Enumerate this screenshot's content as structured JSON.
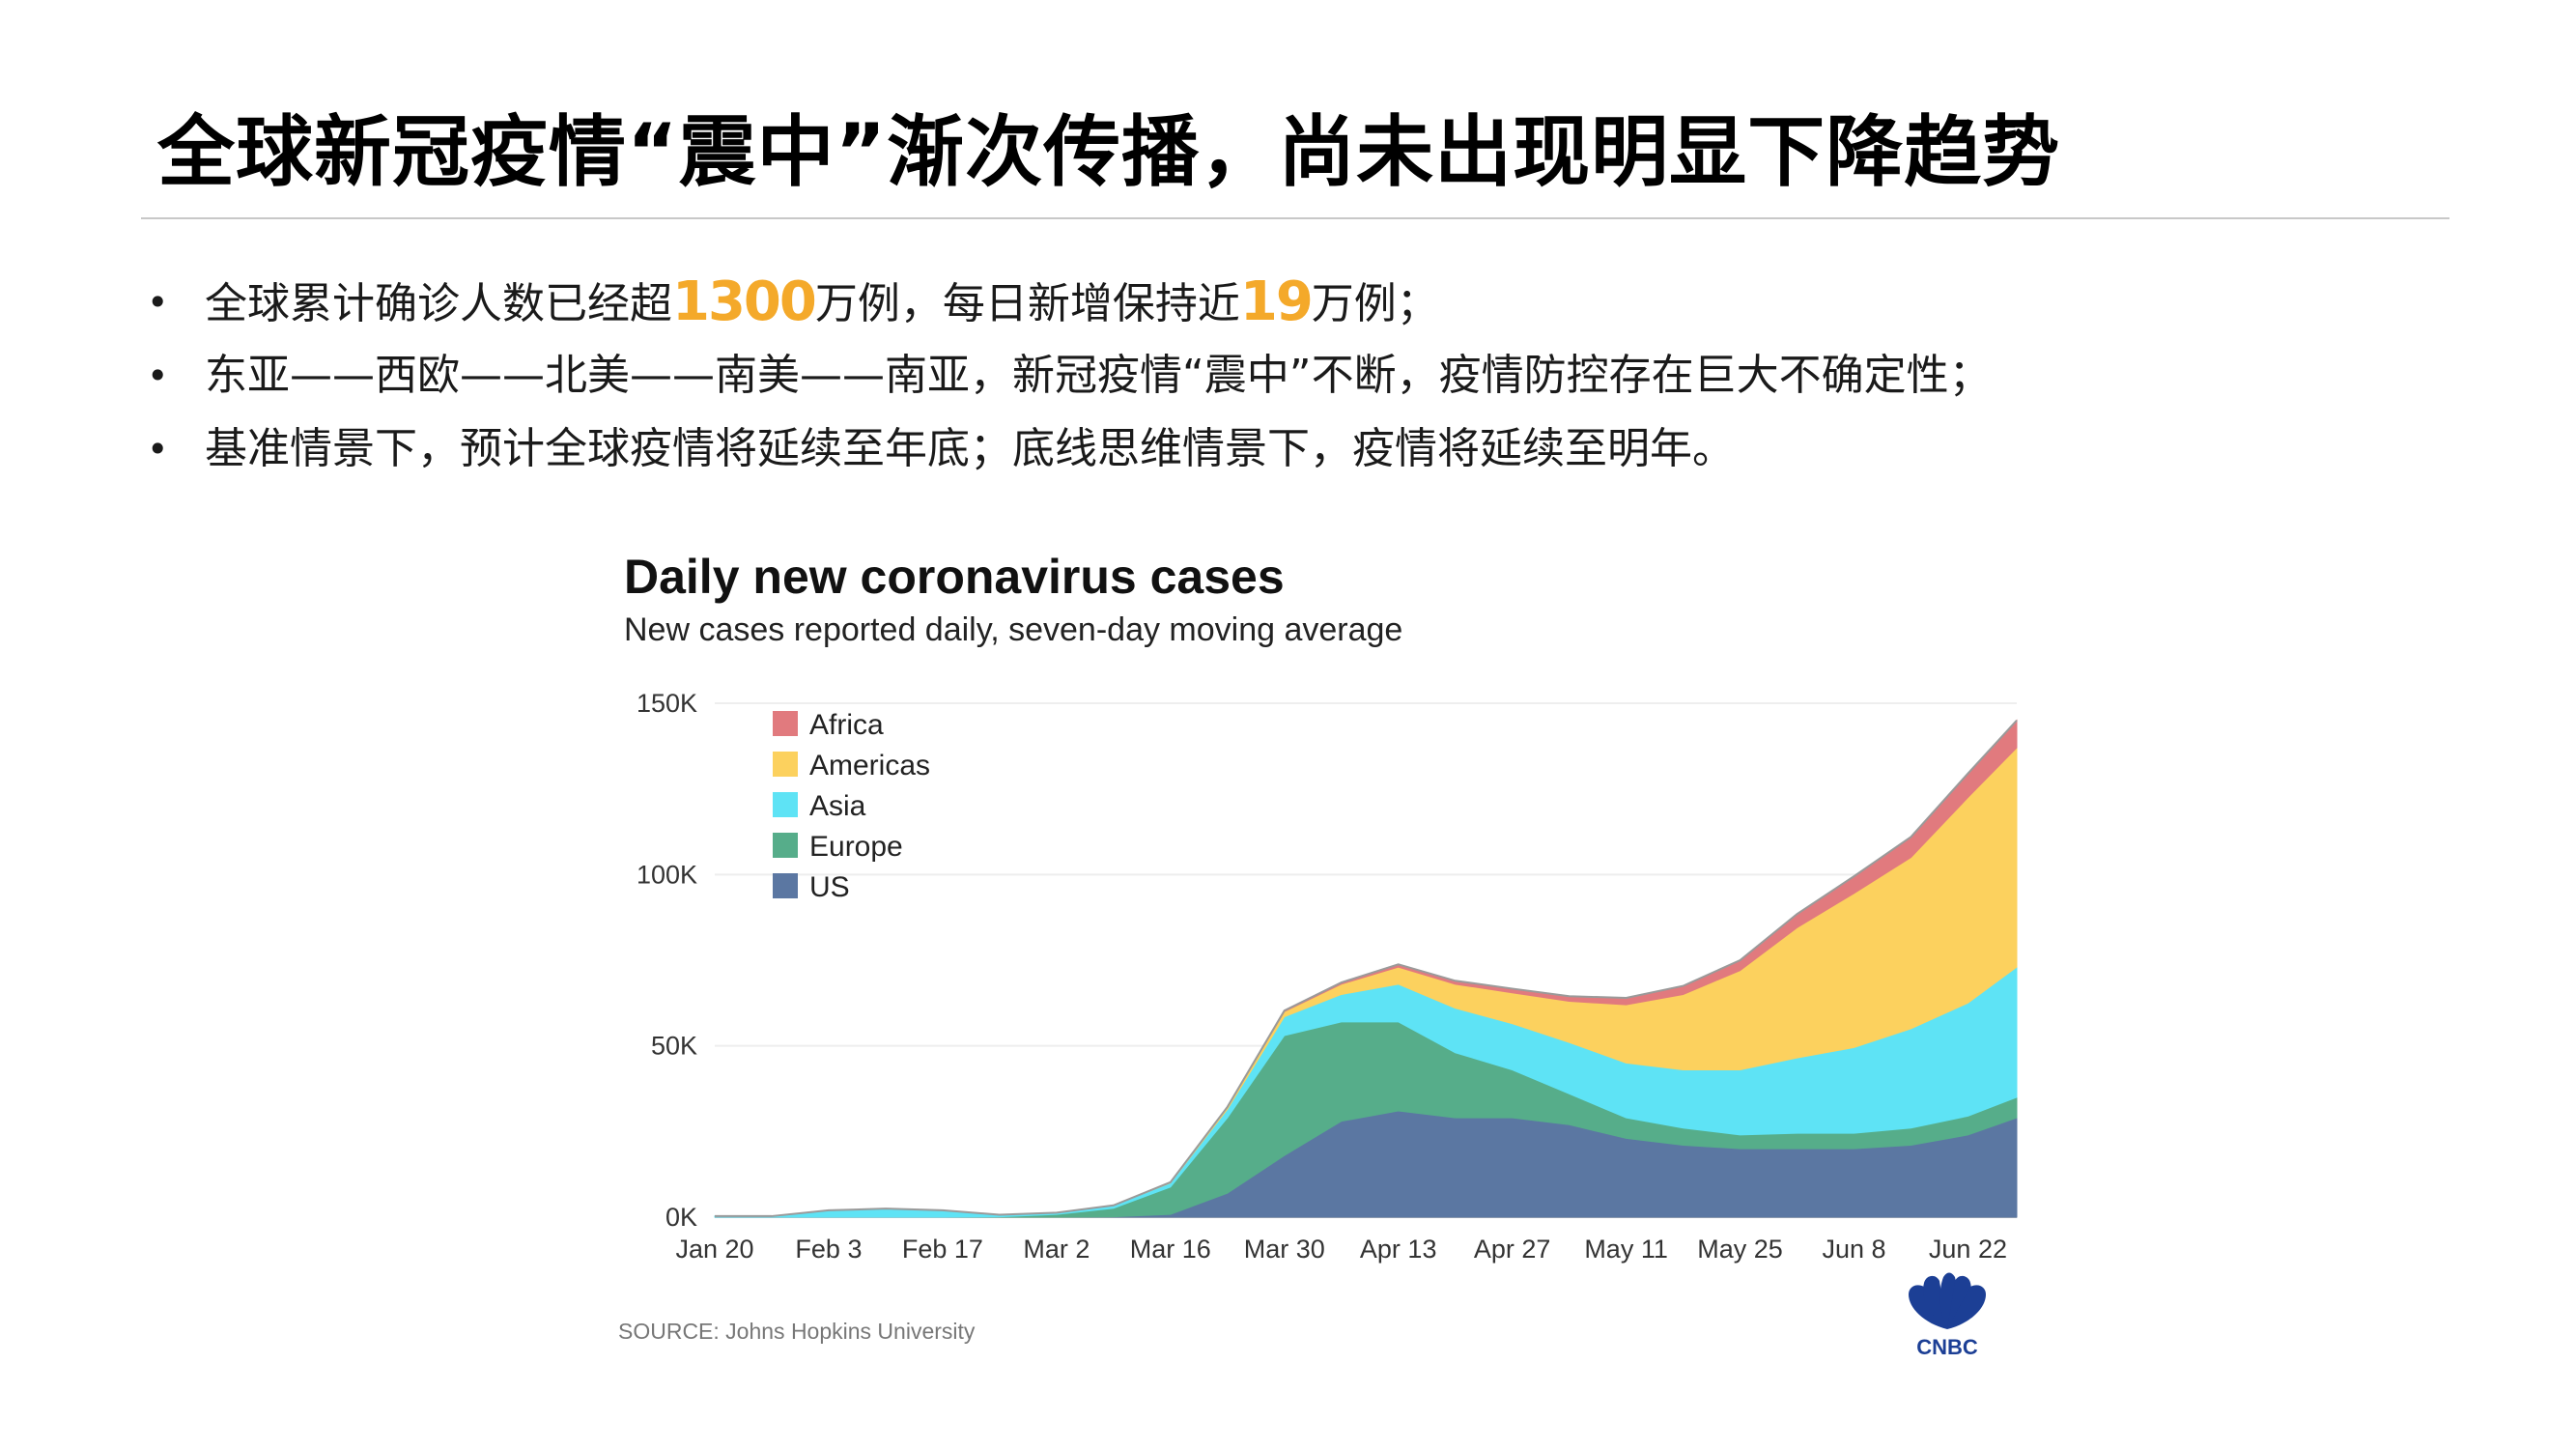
{
  "slide": {
    "title": "全球新冠疫情“震中”渐次传播，尚未出现明显下降趋势",
    "bullet_symbol": "•",
    "bullets": [
      {
        "parts": [
          {
            "text": "全球累计确诊人数已经超"
          },
          {
            "text": "1300",
            "highlight": true
          },
          {
            "text": "万例，每日新增保持近"
          },
          {
            "text": "19",
            "highlight": true
          },
          {
            "text": "万例；"
          }
        ]
      },
      {
        "parts": [
          {
            "text": "东亚——西欧——北美——南美——南亚，新冠疫情“震中”不断，疫情防控存在巨大不确定性；"
          }
        ]
      },
      {
        "parts": [
          {
            "text": "基准情景下，预计全球疫情将延续至年底；底线思维情景下，疫情将延续至明年。"
          }
        ]
      }
    ],
    "highlight_color": "#F4A92A"
  },
  "chart_data": {
    "type": "area",
    "stacked": true,
    "title": "Daily new coronavirus cases",
    "subtitle": "New cases reported daily, seven-day moving average",
    "source": "SOURCE: Johns Hopkins University",
    "logo_text": "CNBC",
    "x_tick_labels": [
      "Jan 20",
      "Feb 3",
      "Feb 17",
      "Mar 2",
      "Mar 16",
      "Mar 30",
      "Apr 13",
      "Apr 27",
      "May 11",
      "May 25",
      "Jun 8",
      "Jun 22"
    ],
    "x_tick_days": [
      0,
      14,
      28,
      42,
      56,
      70,
      84,
      98,
      112,
      126,
      140,
      154
    ],
    "x_range": [
      0,
      160
    ],
    "y_range": [
      0,
      150000
    ],
    "y_ticks": [
      0,
      50000,
      100000,
      150000
    ],
    "y_tick_labels": [
      "0K",
      "50K",
      "100K",
      "150K"
    ],
    "legend_position": "top-left",
    "x_days": [
      0,
      7,
      14,
      21,
      28,
      35,
      42,
      49,
      56,
      63,
      70,
      77,
      84,
      91,
      98,
      105,
      112,
      119,
      126,
      133,
      140,
      147,
      154,
      160
    ],
    "series": [
      {
        "name": "US",
        "color": "#5B77A2",
        "values": [
          0,
          0,
          0,
          0,
          0,
          0,
          0,
          100,
          800,
          7000,
          18000,
          28000,
          31000,
          29000,
          29000,
          27000,
          23000,
          21000,
          20000,
          20000,
          20000,
          21000,
          24000,
          29000
        ]
      },
      {
        "name": "Europe",
        "color": "#56AD8A",
        "values": [
          0,
          0,
          0,
          0,
          0,
          100,
          800,
          2500,
          8000,
          22000,
          35000,
          29000,
          26000,
          19000,
          14000,
          9000,
          6000,
          5000,
          4000,
          4500,
          4500,
          5000,
          5500,
          6000
        ]
      },
      {
        "name": "Asia",
        "color": "#5EE3F5",
        "values": [
          300,
          300,
          2000,
          2500,
          2000,
          600,
          500,
          800,
          1200,
          2500,
          5500,
          8000,
          11000,
          13000,
          13500,
          15000,
          16000,
          17000,
          19000,
          22000,
          25000,
          29000,
          33000,
          38000
        ]
      },
      {
        "name": "Americas",
        "color": "#FCD15E",
        "values": [
          0,
          0,
          0,
          0,
          0,
          0,
          0,
          50,
          200,
          600,
          1500,
          3000,
          5000,
          7000,
          9000,
          12000,
          17000,
          22000,
          29000,
          38000,
          45000,
          50000,
          60000,
          64000
        ]
      },
      {
        "name": "Africa",
        "color": "#E17A7E",
        "values": [
          0,
          0,
          0,
          0,
          0,
          0,
          0,
          0,
          0,
          100,
          300,
          500,
          800,
          1000,
          1200,
          1500,
          2000,
          2500,
          3000,
          4000,
          5000,
          6000,
          7000,
          8000
        ]
      }
    ]
  }
}
